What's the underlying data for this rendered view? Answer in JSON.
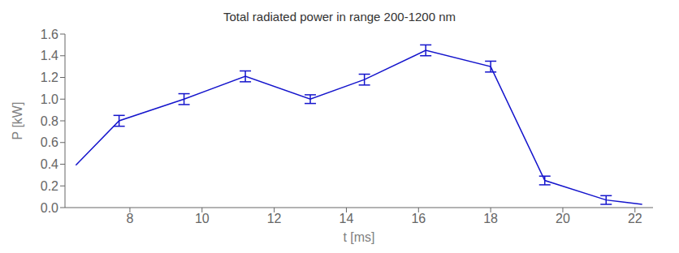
{
  "chart_data": {
    "type": "line",
    "title": "Total radiated power in range 200-1200 nm",
    "xlabel": "t [ms]",
    "ylabel": "P [kW]",
    "x": [
      6.5,
      7.7,
      9.5,
      11.2,
      13.0,
      14.5,
      16.2,
      18.0,
      19.5,
      21.2,
      22.2
    ],
    "values": [
      0.39,
      0.8,
      1.0,
      1.21,
      1.0,
      1.18,
      1.45,
      1.3,
      0.25,
      0.07,
      0.03
    ],
    "yerr": [
      0.0,
      0.05,
      0.05,
      0.05,
      0.04,
      0.05,
      0.05,
      0.05,
      0.04,
      0.04,
      0.0
    ],
    "xlim": [
      6.2,
      22.5
    ],
    "ylim": [
      0.0,
      1.6
    ],
    "xticks": [
      8,
      10,
      12,
      14,
      16,
      18,
      20,
      22
    ],
    "yticks": [
      {
        "value": 0,
        "label": "0.0"
      },
      0.2,
      0.4,
      0.6,
      0.8,
      {
        "value": 1,
        "label": "1.0"
      },
      1.2,
      1.4,
      1.6
    ],
    "color": "#1414cc",
    "grid": false
  }
}
